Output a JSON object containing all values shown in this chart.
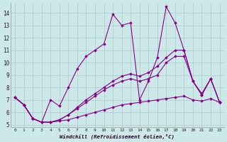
{
  "xlabel": "Windchill (Refroidissement éolien,°C)",
  "background_color": "#cce8e8",
  "grid_color": "#aacccc",
  "line_color": "#880088",
  "xlim": [
    -0.5,
    23.5
  ],
  "ylim": [
    4.8,
    14.8
  ],
  "yticks": [
    5,
    6,
    7,
    8,
    9,
    10,
    11,
    12,
    13,
    14
  ],
  "xticks": [
    0,
    1,
    2,
    3,
    4,
    5,
    6,
    7,
    8,
    9,
    10,
    11,
    12,
    13,
    14,
    15,
    16,
    17,
    18,
    19,
    20,
    21,
    22,
    23
  ],
  "series": [
    [
      7.2,
      6.6,
      5.5,
      5.2,
      5.2,
      5.3,
      5.4,
      5.6,
      5.8,
      6.0,
      6.2,
      6.4,
      6.6,
      6.7,
      6.8,
      6.9,
      7.0,
      7.1,
      7.2,
      7.3,
      7.0,
      6.9,
      7.1,
      6.8
    ],
    [
      7.2,
      6.6,
      5.5,
      5.2,
      5.2,
      5.4,
      5.8,
      6.3,
      6.8,
      7.3,
      7.8,
      8.2,
      8.5,
      8.7,
      8.5,
      8.7,
      9.0,
      10.0,
      10.5,
      10.5,
      8.5,
      7.4,
      8.7,
      6.8
    ],
    [
      7.2,
      6.6,
      5.5,
      5.2,
      5.2,
      5.4,
      5.8,
      6.4,
      7.0,
      7.5,
      8.0,
      8.5,
      8.9,
      9.1,
      8.9,
      9.2,
      9.7,
      10.4,
      11.0,
      11.0,
      8.5,
      7.4,
      8.7,
      6.8
    ],
    [
      7.2,
      6.6,
      5.5,
      5.2,
      7.0,
      6.5,
      8.0,
      9.5,
      10.5,
      11.0,
      11.5,
      13.9,
      13.0,
      13.2,
      7.0,
      8.5,
      10.4,
      14.5,
      13.2,
      11.0,
      8.5,
      7.5,
      8.7,
      6.8
    ]
  ]
}
